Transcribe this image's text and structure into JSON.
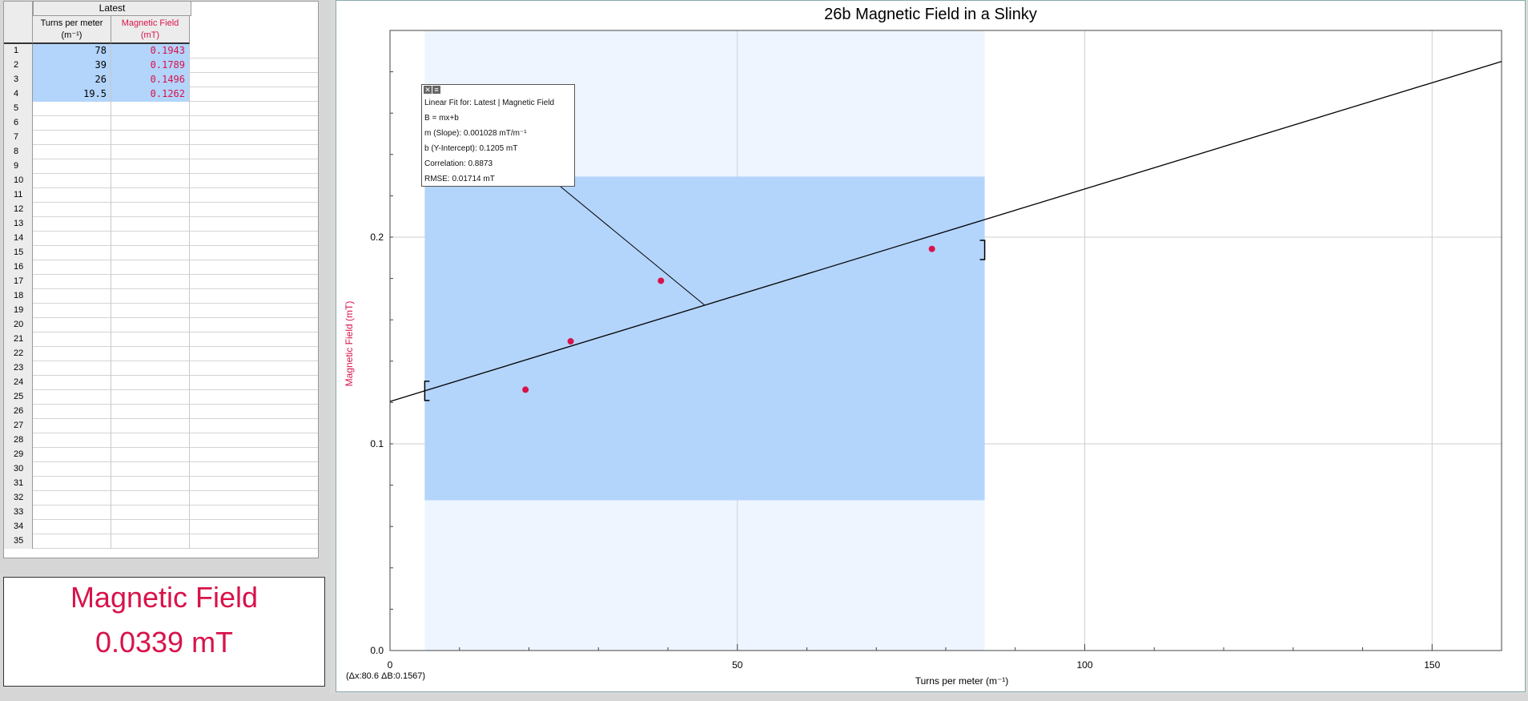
{
  "table": {
    "set_name": "Latest",
    "columns": [
      {
        "name": "Turns per meter",
        "unit": "(m⁻¹)",
        "color": "#000000"
      },
      {
        "name": "Magnetic Field",
        "unit": "(mT)",
        "color": "#d8134a"
      }
    ],
    "rows": [
      {
        "n": "1",
        "x": "78",
        "y": "0.1943"
      },
      {
        "n": "2",
        "x": "39",
        "y": "0.1789"
      },
      {
        "n": "3",
        "x": "26",
        "y": "0.1496"
      },
      {
        "n": "4",
        "x": "19.5",
        "y": "0.1262"
      },
      {
        "n": "5",
        "x": "",
        "y": ""
      },
      {
        "n": "6",
        "x": "",
        "y": ""
      },
      {
        "n": "7",
        "x": "",
        "y": ""
      },
      {
        "n": "8",
        "x": "",
        "y": ""
      },
      {
        "n": "9",
        "x": "",
        "y": ""
      },
      {
        "n": "10",
        "x": "",
        "y": ""
      },
      {
        "n": "11",
        "x": "",
        "y": ""
      },
      {
        "n": "12",
        "x": "",
        "y": ""
      },
      {
        "n": "13",
        "x": "",
        "y": ""
      },
      {
        "n": "14",
        "x": "",
        "y": ""
      },
      {
        "n": "15",
        "x": "",
        "y": ""
      },
      {
        "n": "16",
        "x": "",
        "y": ""
      },
      {
        "n": "17",
        "x": "",
        "y": ""
      },
      {
        "n": "18",
        "x": "",
        "y": ""
      },
      {
        "n": "19",
        "x": "",
        "y": ""
      },
      {
        "n": "20",
        "x": "",
        "y": ""
      },
      {
        "n": "21",
        "x": "",
        "y": ""
      },
      {
        "n": "22",
        "x": "",
        "y": ""
      },
      {
        "n": "23",
        "x": "",
        "y": ""
      },
      {
        "n": "24",
        "x": "",
        "y": ""
      },
      {
        "n": "25",
        "x": "",
        "y": ""
      },
      {
        "n": "26",
        "x": "",
        "y": ""
      },
      {
        "n": "27",
        "x": "",
        "y": ""
      },
      {
        "n": "28",
        "x": "",
        "y": ""
      },
      {
        "n": "29",
        "x": "",
        "y": ""
      },
      {
        "n": "30",
        "x": "",
        "y": ""
      },
      {
        "n": "31",
        "x": "",
        "y": ""
      },
      {
        "n": "32",
        "x": "",
        "y": ""
      },
      {
        "n": "33",
        "x": "",
        "y": ""
      },
      {
        "n": "34",
        "x": "",
        "y": ""
      },
      {
        "n": "35",
        "x": "",
        "y": ""
      }
    ]
  },
  "meter": {
    "title": "Magnetic Field",
    "value": "0.0339 mT",
    "color": "#d8134a"
  },
  "chart_data": {
    "type": "scatter",
    "title": "26b Magnetic Field in a Slinky",
    "xlabel": "Turns per meter (m⁻¹)",
    "ylabel": "Magnetic Field (mT)",
    "xlim": [
      0,
      160
    ],
    "ylim": [
      0,
      0.3
    ],
    "x_ticks": [
      "0",
      "50",
      "100",
      "150"
    ],
    "x_tick_values": [
      0,
      50,
      100,
      150
    ],
    "y_ticks": [
      "0.0",
      "0.1",
      "0.2"
    ],
    "y_tick_values": [
      0,
      0.1,
      0.2
    ],
    "grid": true,
    "series": [
      {
        "name": "Magnetic Field",
        "color": "#d8134a",
        "x": [
          78,
          39,
          26,
          19.5
        ],
        "y": [
          0.1943,
          0.1789,
          0.1496,
          0.1262
        ]
      }
    ],
    "fit": {
      "slope": 0.001028,
      "intercept": 0.1205,
      "x_range": [
        5,
        85.6
      ]
    },
    "selection_x_range": [
      5,
      85.6
    ],
    "selection_y_range": [
      0.0727,
      0.2293
    ],
    "fit_box": {
      "lines": [
        "Linear Fit for: Latest | Magnetic Field",
        "B = mx+b",
        "m (Slope): 0.001028 mT/m⁻¹",
        "b (Y-Intercept): 0.1205 mT",
        "Correlation: 0.8873",
        "RMSE: 0.01714 mT"
      ]
    },
    "delta_readout": "(Δx:80.6 ΔB:0.1567)"
  }
}
